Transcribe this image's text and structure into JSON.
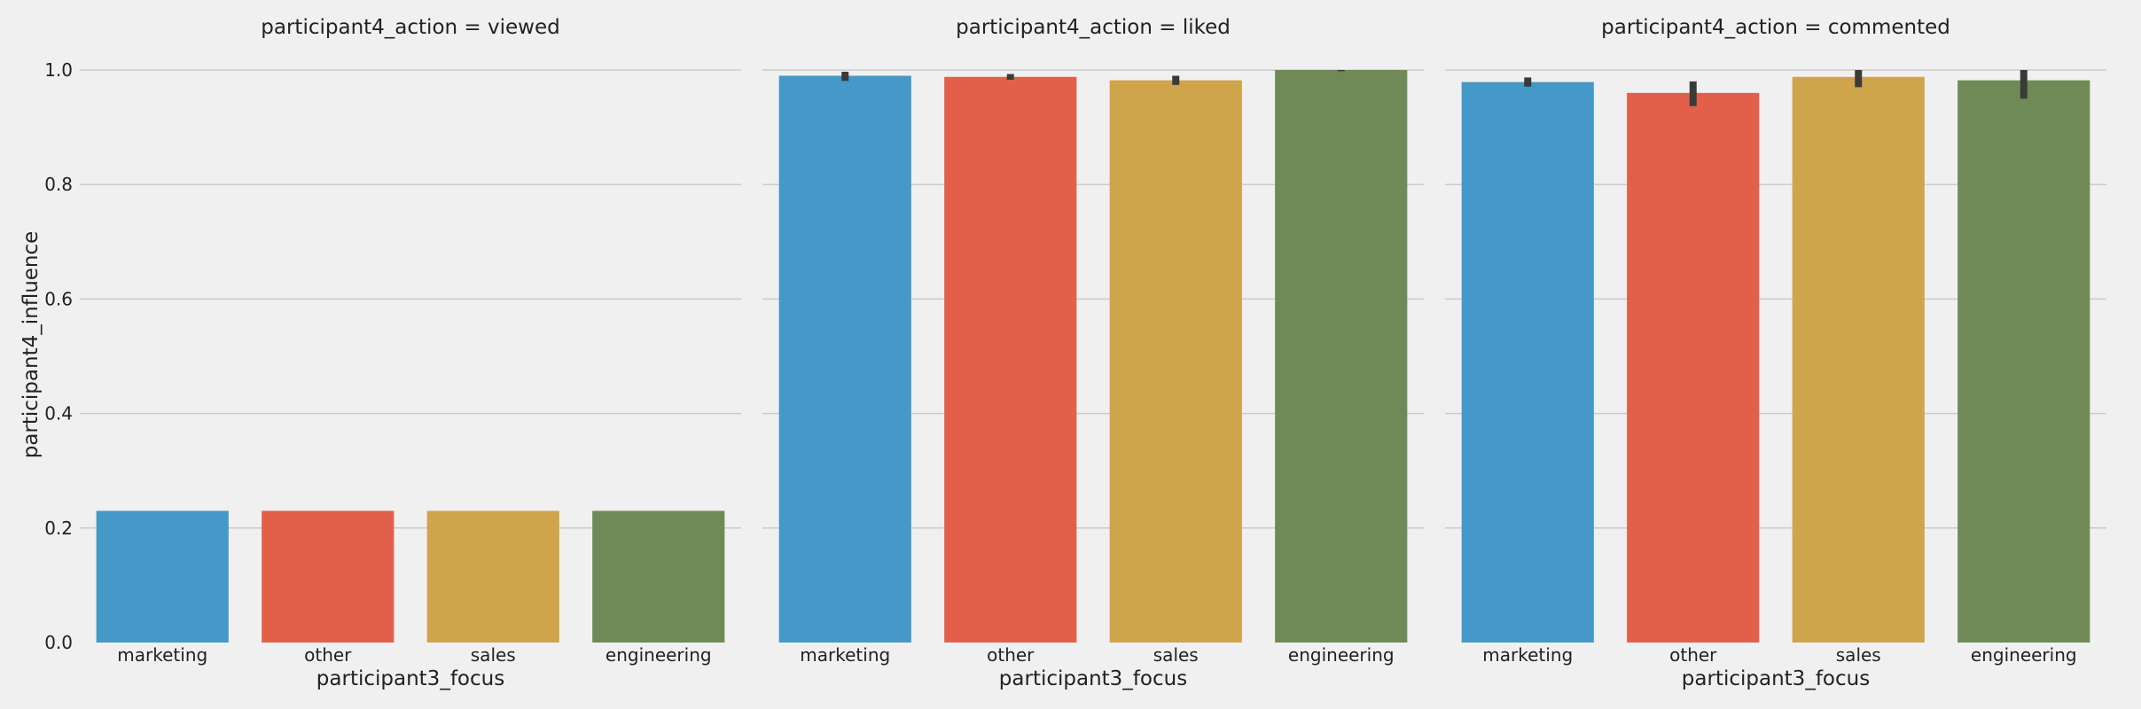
{
  "chart_data": {
    "type": "bar",
    "grid": true,
    "ylabel": "participant4_influence",
    "xlabel": "participant3_focus",
    "ylim": [
      0,
      1.0
    ],
    "yticks": [
      "0.0",
      "0.2",
      "0.4",
      "0.6",
      "0.8",
      "1.0"
    ],
    "ytick_values": [
      0.0,
      0.2,
      0.4,
      0.6,
      0.8,
      1.0
    ],
    "categories": [
      "marketing",
      "other",
      "sales",
      "engineering"
    ],
    "colors": [
      "#4499c8",
      "#e2604a",
      "#cfa54b",
      "#6f8a56"
    ],
    "error_bar_color": "#3a3a3a",
    "facets": [
      {
        "title": "participant4_action = viewed",
        "values": [
          0.23,
          0.23,
          0.23,
          0.23
        ],
        "error": [
          [
            0.23,
            0.23
          ],
          [
            0.23,
            0.23
          ],
          [
            0.23,
            0.23
          ],
          [
            0.23,
            0.23
          ]
        ]
      },
      {
        "title": "participant4_action = liked",
        "values": [
          0.99,
          0.988,
          0.982,
          1.0
        ],
        "error": [
          [
            0.981,
            0.997
          ],
          [
            0.983,
            0.993
          ],
          [
            0.974,
            0.99
          ],
          [
            0.998,
            1.0
          ]
        ]
      },
      {
        "title": "participant4_action = commented",
        "values": [
          0.979,
          0.96,
          0.988,
          0.982
        ],
        "error": [
          [
            0.971,
            0.987
          ],
          [
            0.937,
            0.98
          ],
          [
            0.97,
            1.0
          ],
          [
            0.95,
            1.0
          ]
        ]
      }
    ]
  }
}
